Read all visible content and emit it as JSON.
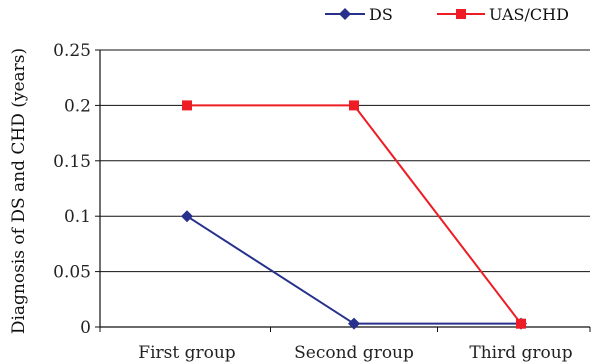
{
  "chart_data": {
    "type": "line",
    "title": "",
    "xlabel": "",
    "ylabel": "Diagnosis of DS and CHD (years)",
    "categories": [
      "First group",
      "Second group",
      "Third group"
    ],
    "ylim": [
      0,
      0.25
    ],
    "yticks": [
      0,
      0.05,
      0.1,
      0.15,
      0.2,
      0.25
    ],
    "ytick_labels": [
      "0",
      "0.05",
      "0.1",
      "0.15",
      "0.2",
      "0.25"
    ],
    "grid": "horizontal",
    "legend_position": "top-right",
    "series": [
      {
        "name": "DS",
        "values": [
          0.1,
          0.003,
          0.003
        ],
        "color": "#27318b",
        "marker": "diamond"
      },
      {
        "name": "UAS/CHD",
        "values": [
          0.2,
          0.2,
          0.003
        ],
        "color": "#ee1c24",
        "marker": "square"
      }
    ]
  }
}
